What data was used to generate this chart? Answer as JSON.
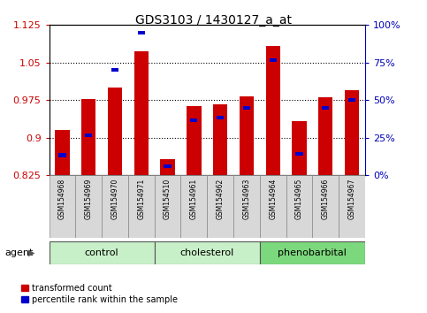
{
  "title": "GDS3103 / 1430127_a_at",
  "samples": [
    "GSM154968",
    "GSM154969",
    "GSM154970",
    "GSM154971",
    "GSM154510",
    "GSM154961",
    "GSM154962",
    "GSM154963",
    "GSM154964",
    "GSM154965",
    "GSM154966",
    "GSM154967"
  ],
  "red_values": [
    0.915,
    0.977,
    1.0,
    1.072,
    0.858,
    0.963,
    0.967,
    0.982,
    1.083,
    0.933,
    0.981,
    0.995
  ],
  "blue_values": [
    0.865,
    0.905,
    1.035,
    1.11,
    0.843,
    0.935,
    0.94,
    0.96,
    1.055,
    0.868,
    0.96,
    0.975
  ],
  "y_min": 0.825,
  "y_max": 1.125,
  "y_ticks": [
    0.825,
    0.9,
    0.975,
    1.05,
    1.125
  ],
  "right_y_ticks": [
    0,
    25,
    50,
    75,
    100
  ],
  "right_y_labels": [
    "0%",
    "25%",
    "50%",
    "75%",
    "100%"
  ],
  "group_labels": [
    "control",
    "cholesterol",
    "phenobarbital"
  ],
  "group_ranges": [
    [
      0,
      4
    ],
    [
      4,
      8
    ],
    [
      8,
      12
    ]
  ],
  "group_colors": [
    "#c8f0c8",
    "#c8f0c8",
    "#7cd87c"
  ],
  "bar_color": "#cc0000",
  "dot_color": "#0000cc",
  "bar_width": 0.55,
  "left_label_color": "#cc0000",
  "right_label_color": "#0000bb",
  "agent_label": "agent",
  "legend_red": "transformed count",
  "legend_blue": "percentile rank within the sample"
}
